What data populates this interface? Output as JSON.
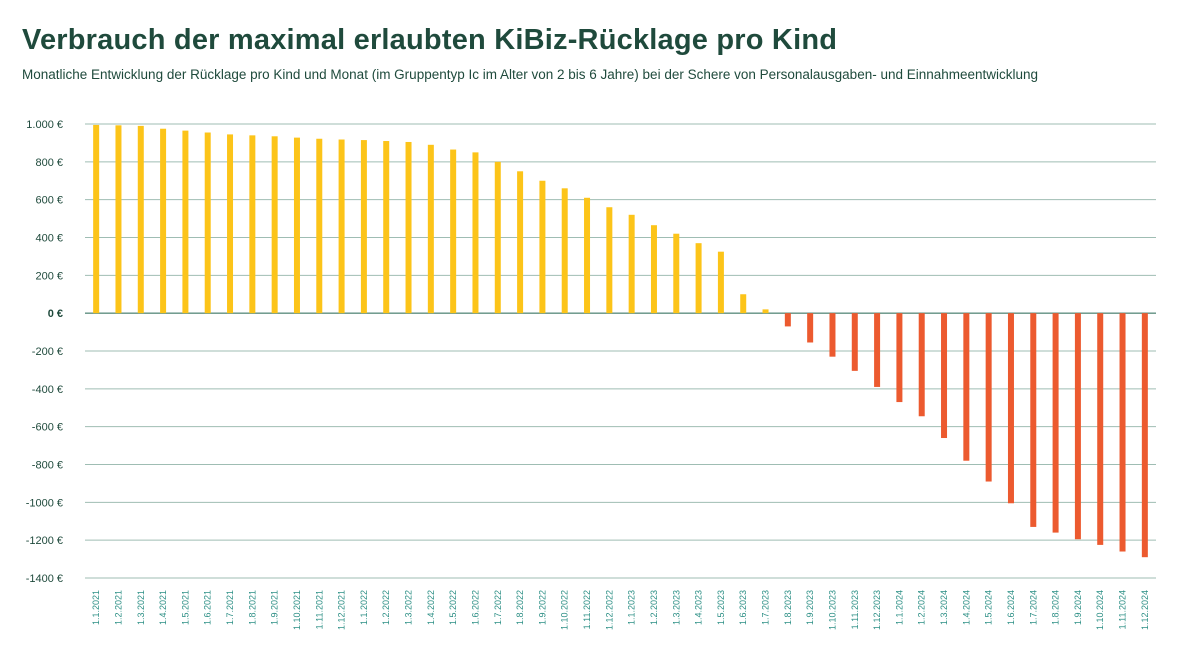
{
  "title": "Verbrauch der maximal erlaubten KiBiz-Rücklage pro Kind",
  "subtitle": "Monatliche Entwicklung der Rücklage pro Kind und Monat (im Gruppentyp Ic im Alter von 2 bis 6 Jahre) bei der Schere von Personalausgaben- und Einnahmeentwicklung",
  "colors": {
    "positive": "#fcc419",
    "negative": "#ec5a2f",
    "grid": "#9fbdb3",
    "text": "#1f4a3c",
    "xlabel": "#2c8f85"
  },
  "chart_data": {
    "type": "bar",
    "title": "Verbrauch der maximal erlaubten KiBiz-Rücklage pro Kind",
    "xlabel": "",
    "ylabel": "",
    "ylim": [
      -1400,
      1000
    ],
    "yticks": [
      1000,
      800,
      600,
      400,
      200,
      0,
      -200,
      -400,
      -600,
      -800,
      -1000,
      -1200,
      -1400
    ],
    "ytick_labels": [
      "1.000 €",
      "800 €",
      "600 €",
      "400 €",
      "200 €",
      "0 €",
      "-200 €",
      "-400 €",
      "-600 €",
      "-800 €",
      "-1000 €",
      "-1200 €",
      "-1400 €"
    ],
    "categories": [
      "1.1.2021",
      "1.2.2021",
      "1.3.2021",
      "1.4.2021",
      "1.5.2021",
      "1.6.2021",
      "1.7.2021",
      "1.8.2021",
      "1.9.2021",
      "1.10.2021",
      "1.11.2021",
      "1.12.2021",
      "1.1.2022",
      "1.2.2022",
      "1.3.2022",
      "1.4.2022",
      "1.5.2022",
      "1.6.2022",
      "1.7.2022",
      "1.8.2022",
      "1.9.2022",
      "1.10.2022",
      "1.11.2022",
      "1.12.2022",
      "1.1.2023",
      "1.2.2023",
      "1.3.2023",
      "1.4.2023",
      "1.5.2023",
      "1.6.2023",
      "1.7.2023",
      "1.8.2023",
      "1.9.2023",
      "1.10.2023",
      "1.11.2023",
      "1.12.2023",
      "1.1.2024",
      "1.2.2024",
      "1.3.2024",
      "1.4.2024",
      "1.5.2024",
      "1.6.2024",
      "1.7.2024",
      "1.8.2024",
      "1.9.2024",
      "1.10.2024",
      "1.11.2024",
      "1.12.2024"
    ],
    "values": [
      995,
      993,
      990,
      975,
      965,
      955,
      945,
      940,
      935,
      928,
      922,
      918,
      915,
      910,
      905,
      890,
      865,
      850,
      800,
      750,
      700,
      660,
      610,
      560,
      520,
      465,
      420,
      370,
      325,
      100,
      20,
      -70,
      -155,
      -230,
      -305,
      -390,
      -470,
      -545,
      -660,
      -780,
      -890,
      -1005,
      -1130,
      -1160,
      -1195,
      -1225,
      -1260,
      -1290
    ]
  }
}
